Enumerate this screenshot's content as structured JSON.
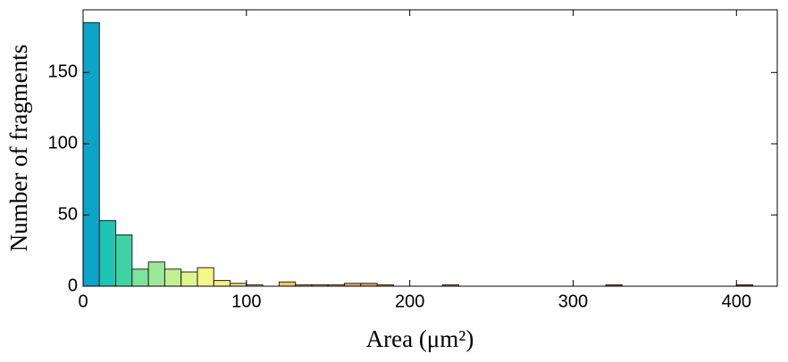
{
  "chart_data": {
    "type": "histogram",
    "x_label": "Area (μm²)",
    "y_label": "Number of fragments",
    "bins": [
      0,
      10,
      20,
      30,
      40,
      50,
      60,
      70,
      80,
      90,
      100,
      110,
      120,
      130,
      140,
      150,
      160,
      170,
      180,
      190,
      200,
      210,
      220,
      230,
      240,
      250,
      260,
      270,
      280,
      290,
      300,
      310,
      320,
      330,
      340,
      350,
      360,
      370,
      380,
      390,
      400,
      410,
      420
    ],
    "values": [
      185,
      46,
      36,
      12,
      17,
      12,
      10,
      13,
      4,
      2,
      1,
      0,
      3,
      1,
      1,
      1,
      2,
      2,
      1,
      0,
      0,
      0,
      1,
      0,
      0,
      0,
      0,
      0,
      0,
      0,
      0,
      0,
      1,
      0,
      0,
      0,
      0,
      0,
      0,
      0,
      1,
      0
    ],
    "colors": [
      "#0aa5c8",
      "#1dc5b2",
      "#3fd3a4",
      "#7ee39b",
      "#9ce898",
      "#c3ef90",
      "#dff48c",
      "#f3f888",
      "#f7ef80",
      "#f6e37a",
      "#f2d874",
      "#f0cf70",
      "#efc86c",
      "#edc068",
      "#ebb865",
      "#e9b162",
      "#e6a95f",
      "#e4a25c",
      "#e19b59",
      "#df9556",
      "#dc8f54",
      "#da8952",
      "#d78350",
      "#d57e4e",
      "#d2794c",
      "#d0744a",
      "#cd6f48",
      "#cb6b46",
      "#c86744",
      "#c66343",
      "#c35f41",
      "#c15b40",
      "#be573e",
      "#bc543d",
      "#b9503b",
      "#b74d3a",
      "#b44a39",
      "#b24738",
      "#af4437",
      "#ad4136",
      "#aa3e35",
      "#a83c34"
    ],
    "xlim": [
      0,
      425
    ],
    "ylim": [
      0,
      194
    ],
    "xticks": [
      0,
      100,
      200,
      300,
      400
    ],
    "yticks": [
      0,
      50,
      100,
      150
    ]
  }
}
